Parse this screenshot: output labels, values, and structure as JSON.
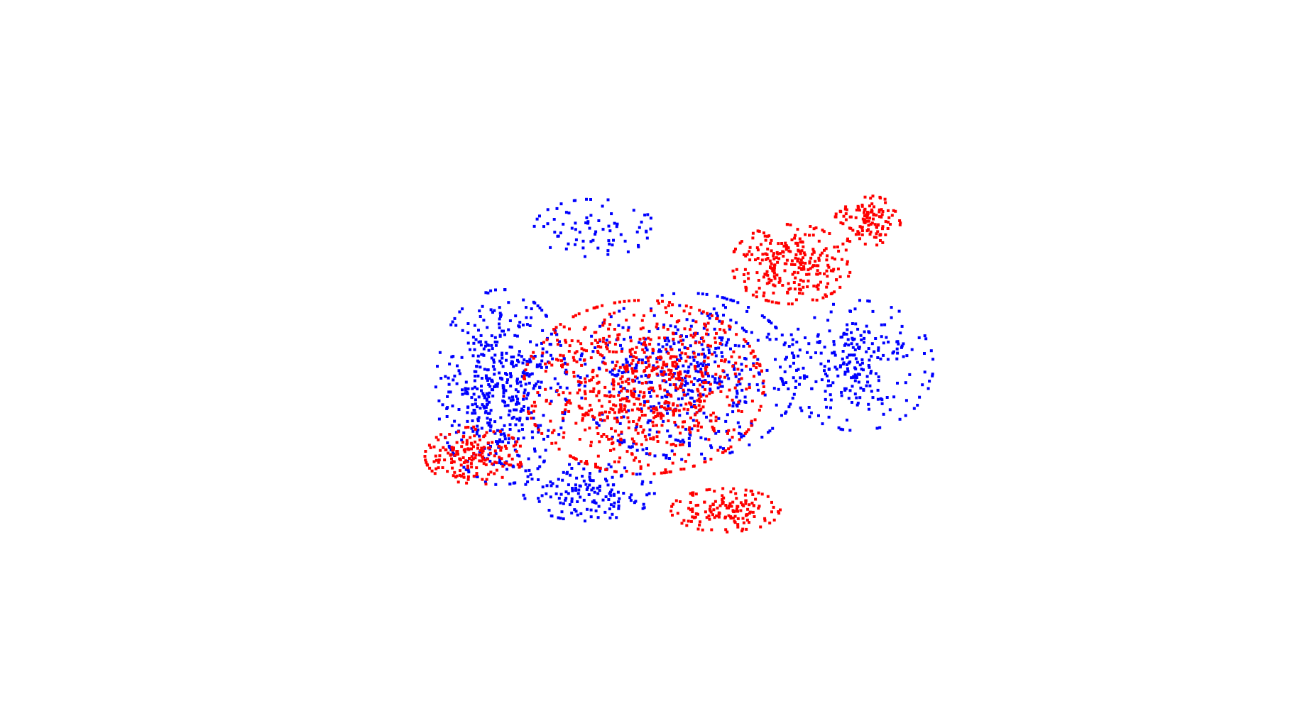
{
  "chart_data": {
    "type": "scatter",
    "title": "",
    "xlabel": "",
    "ylabel": "",
    "grid": false,
    "legend": "none",
    "axes_visible": false,
    "series": [
      {
        "color": "#0000ff",
        "count": 1500,
        "regions": [
          {
            "role": "left-lobe",
            "cx": 0.19,
            "cy": 0.56,
            "rx": 0.12,
            "ry": 0.27,
            "weight": 0.34
          },
          {
            "role": "center-cloud",
            "cx": 0.53,
            "cy": 0.53,
            "rx": 0.2,
            "ry": 0.23,
            "weight": 0.33
          },
          {
            "role": "right-fan",
            "cx": 0.84,
            "cy": 0.5,
            "rx": 0.14,
            "ry": 0.18,
            "weight": 0.18
          },
          {
            "role": "bottom-left-rim",
            "cx": 0.35,
            "cy": 0.85,
            "rx": 0.12,
            "ry": 0.08,
            "weight": 0.1
          },
          {
            "role": "top-arc",
            "cx": 0.36,
            "cy": 0.12,
            "rx": 0.11,
            "ry": 0.08,
            "weight": 0.05
          }
        ]
      },
      {
        "color": "#ff0000",
        "count": 1500,
        "regions": [
          {
            "role": "core",
            "cx": 0.45,
            "cy": 0.56,
            "rx": 0.22,
            "ry": 0.24,
            "weight": 0.52
          },
          {
            "role": "top-right-wing",
            "cx": 0.72,
            "cy": 0.22,
            "rx": 0.11,
            "ry": 0.11,
            "weight": 0.18
          },
          {
            "role": "bottom-left",
            "cx": 0.14,
            "cy": 0.75,
            "rx": 0.09,
            "ry": 0.08,
            "weight": 0.12
          },
          {
            "role": "bottom-band",
            "cx": 0.6,
            "cy": 0.9,
            "rx": 0.1,
            "ry": 0.06,
            "weight": 0.1
          },
          {
            "role": "upper-right-band",
            "cx": 0.86,
            "cy": 0.1,
            "rx": 0.06,
            "ry": 0.07,
            "weight": 0.08
          }
        ]
      }
    ]
  }
}
